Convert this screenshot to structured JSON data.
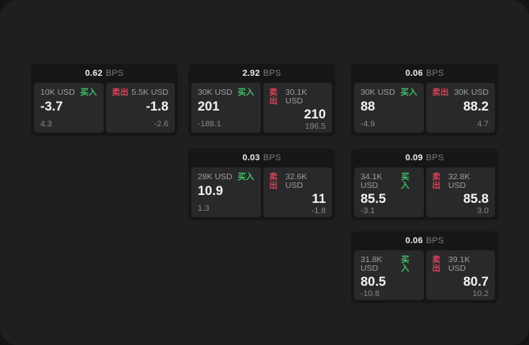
{
  "colors": {
    "outer_bg": "#141414",
    "page_bg": "#1f1f20",
    "card_bg": "#161617",
    "panel_bg": "#29292b",
    "buy_color": "#3fbf67",
    "sell_color": "#d8435a"
  },
  "labels": {
    "bps_suffix": "BPS",
    "buy": "买入",
    "sell": "卖出"
  },
  "cards": [
    {
      "row": 0,
      "col": 0,
      "bps": "0.62",
      "buy": {
        "amount": "10K USD",
        "value": "-3.7",
        "sub": "4.3"
      },
      "sell": {
        "amount": "5.5K USD",
        "value": "-1.8",
        "sub": "-2.6"
      }
    },
    {
      "row": 0,
      "col": 1,
      "bps": "2.92",
      "buy": {
        "amount": "30K USD",
        "value": "201",
        "sub": "-188.1"
      },
      "sell": {
        "amount": "30.1K USD",
        "value": "210",
        "sub": "196.5"
      }
    },
    {
      "row": 0,
      "col": 2,
      "bps": "0.06",
      "buy": {
        "amount": "30K USD",
        "value": "88",
        "sub": "-4.9"
      },
      "sell": {
        "amount": "30K USD",
        "value": "88.2",
        "sub": "4.7"
      }
    },
    {
      "row": 1,
      "col": 1,
      "bps": "0.03",
      "buy": {
        "amount": "28K USD",
        "value": "10.9",
        "sub": "1.3"
      },
      "sell": {
        "amount": "32.6K USD",
        "value": "11",
        "sub": "-1.8"
      }
    },
    {
      "row": 1,
      "col": 2,
      "bps": "0.09",
      "buy": {
        "amount": "34.1K USD",
        "value": "85.5",
        "sub": "-3.1"
      },
      "sell": {
        "amount": "32.8K USD",
        "value": "85.8",
        "sub": "3.0"
      }
    },
    {
      "row": 2,
      "col": 2,
      "bps": "0.06",
      "buy": {
        "amount": "31.8K USD",
        "value": "80.5",
        "sub": "-10.8"
      },
      "sell": {
        "amount": "39.1K USD",
        "value": "80.7",
        "sub": "10.2"
      }
    }
  ]
}
